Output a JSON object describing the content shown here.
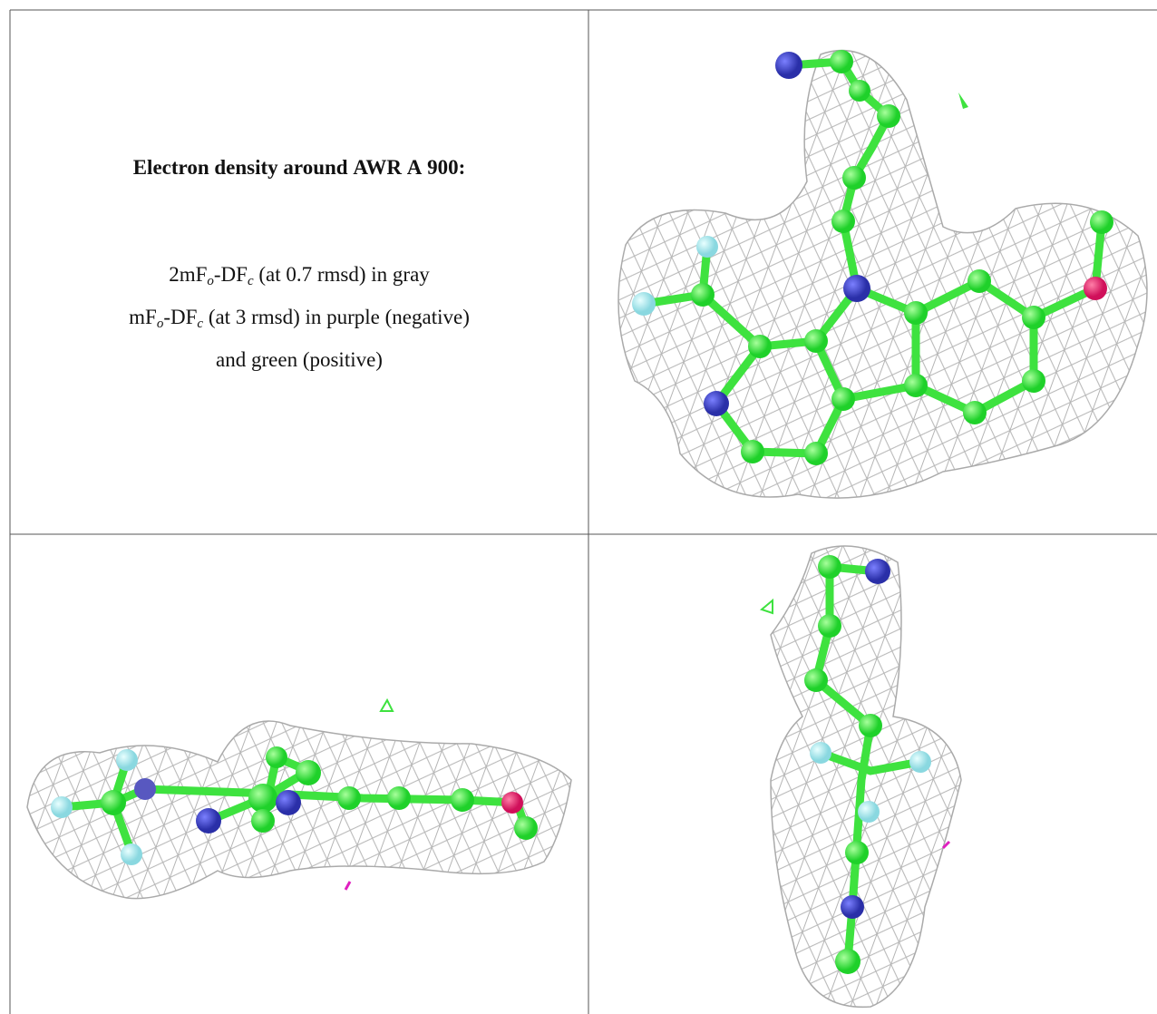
{
  "header": {
    "title": "Electron density around AWR A 900:"
  },
  "legend": {
    "lines": [
      [
        "2mF",
        "o",
        "-DF",
        "c",
        " (at 0.7 rmsd) in gray"
      ],
      [
        "mF",
        "o",
        "-DF",
        "c",
        " (at 3 rmsd) in purple (negative)"
      ],
      [
        "and green (positive)"
      ]
    ]
  }
}
